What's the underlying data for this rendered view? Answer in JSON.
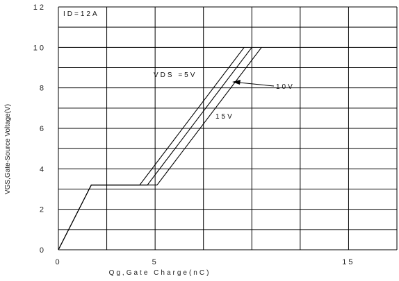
{
  "chart_data": {
    "type": "line",
    "xlabel": "Qg,Gate Charge(nC)",
    "ylabel": "VGS,Gate-Source Voltage(V)",
    "xlim": [
      0,
      17.5
    ],
    "ylim": [
      0,
      12
    ],
    "x_ticks": [
      "0",
      "5",
      "15"
    ],
    "y_ticks": [
      "0",
      "2",
      "4",
      "6",
      "8",
      "10",
      "12"
    ],
    "grid": true,
    "annotations": {
      "condition": "ID=12A",
      "vds5": "VDS =5V",
      "vds10": "10V",
      "vds15": "15V"
    },
    "series": [
      {
        "name": "VDS =5V",
        "points": [
          [
            0,
            0
          ],
          [
            1.7,
            3.2
          ],
          [
            4.2,
            3.2
          ],
          [
            9.6,
            10
          ]
        ]
      },
      {
        "name": "10V",
        "points": [
          [
            0,
            0
          ],
          [
            1.7,
            3.2
          ],
          [
            4.6,
            3.2
          ],
          [
            10.0,
            10
          ]
        ]
      },
      {
        "name": "15V",
        "points": [
          [
            0,
            0
          ],
          [
            1.7,
            3.2
          ],
          [
            5.1,
            3.2
          ],
          [
            10.5,
            10
          ]
        ]
      }
    ]
  }
}
